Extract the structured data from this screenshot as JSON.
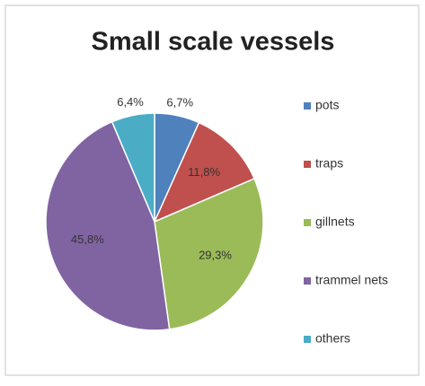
{
  "chart_data": {
    "type": "pie",
    "title": "Small scale vessels",
    "categories": [
      "pots",
      "traps",
      "gillnets",
      "trammel nets",
      "others"
    ],
    "values": [
      6.7,
      11.8,
      29.3,
      45.8,
      6.4
    ],
    "value_labels": [
      "6,7%",
      "11,8%",
      "29,3%",
      "45,8%",
      "6,4%"
    ],
    "colors": [
      "#4f81bd",
      "#c0504d",
      "#9bbb59",
      "#8064a2",
      "#4bacc6"
    ],
    "legend": "right"
  }
}
